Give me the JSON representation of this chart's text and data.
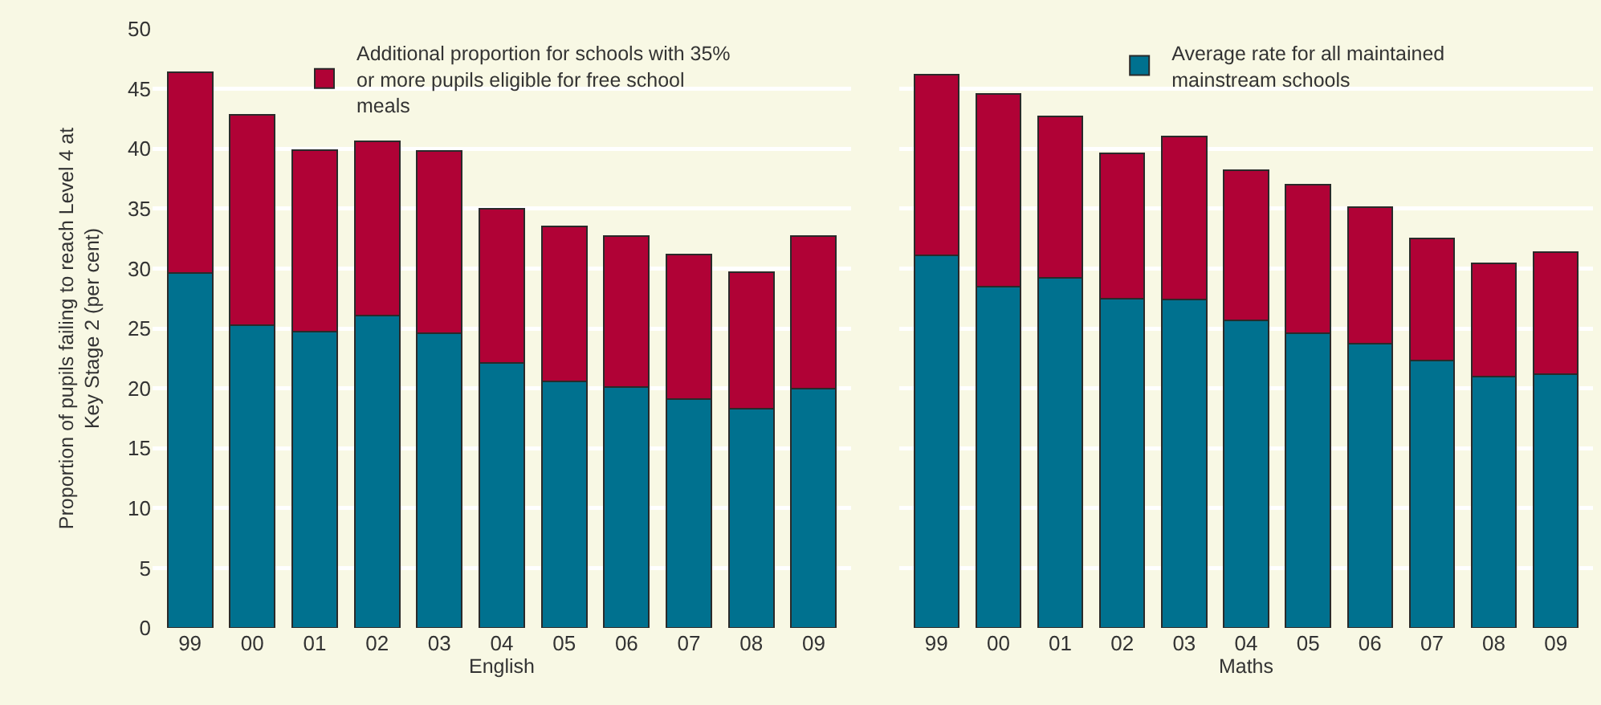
{
  "chart_data": [
    {
      "type": "bar",
      "stacked": true,
      "xlabel": "English",
      "ylabel": "Proportion of pupils failing to reach Level 4 at Key Stage 2 (per cent)",
      "categories": [
        "99",
        "00",
        "01",
        "02",
        "03",
        "04",
        "05",
        "06",
        "07",
        "08",
        "09"
      ],
      "series": [
        {
          "color": "#00718f",
          "values": [
            29.6,
            25.3,
            24.7,
            26.1,
            24.6,
            22.1,
            20.6,
            20.1,
            19.1,
            18.3,
            20.0
          ]
        },
        {
          "name": "Additional proportion for schools with 35% or more pupils eligible for free school meals",
          "color": "#b00236",
          "values": [
            16.8,
            17.5,
            15.2,
            14.5,
            15.2,
            12.9,
            12.9,
            12.6,
            12.1,
            11.4,
            12.7
          ]
        }
      ],
      "ylim": [
        0,
        50
      ],
      "yticks": [
        0,
        5,
        10,
        15,
        20,
        25,
        30,
        35,
        40,
        45,
        50
      ],
      "grid": "y",
      "legend": "top right"
    },
    {
      "type": "bar",
      "stacked": true,
      "xlabel": "Maths",
      "categories": [
        "99",
        "00",
        "01",
        "02",
        "03",
        "04",
        "05",
        "06",
        "07",
        "08",
        "09"
      ],
      "series": [
        {
          "name": "Average rate for all maintained mainstream schools",
          "color": "#00718f",
          "values": [
            31.1,
            28.5,
            29.2,
            27.5,
            27.4,
            25.7,
            24.6,
            23.7,
            22.3,
            21.0,
            21.2
          ]
        },
        {
          "color": "#b00236",
          "values": [
            15.1,
            16.1,
            13.5,
            12.1,
            13.6,
            12.5,
            12.4,
            11.4,
            10.2,
            9.4,
            10.2
          ]
        }
      ],
      "ylim": [
        0,
        50
      ],
      "yticks": [
        0,
        5,
        10,
        15,
        20,
        25,
        30,
        35,
        40,
        45,
        50
      ],
      "grid": "y",
      "legend": "top right",
      "tick_labels": "x"
    }
  ]
}
